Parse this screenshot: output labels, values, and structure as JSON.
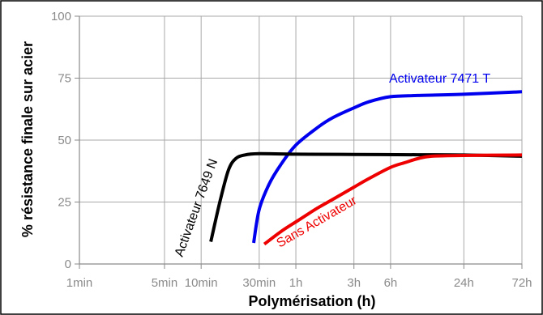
{
  "chart_data": {
    "type": "line",
    "xlabel": "Polymérisation (h)",
    "ylabel": "% résistance finale sur acier",
    "x_scale": "log",
    "x_ticks": [
      {
        "label": "1min",
        "hours": 0.016667
      },
      {
        "label": "5min",
        "hours": 0.083333
      },
      {
        "label": "10min",
        "hours": 0.166667
      },
      {
        "label": "30min",
        "hours": 0.5
      },
      {
        "label": "1h",
        "hours": 1
      },
      {
        "label": "3h",
        "hours": 3
      },
      {
        "label": "6h",
        "hours": 6
      },
      {
        "label": "24h",
        "hours": 24
      },
      {
        "label": "72h",
        "hours": 72
      }
    ],
    "y_ticks": [
      0,
      25,
      50,
      75,
      100
    ],
    "ylim": [
      0,
      100
    ],
    "grid": true,
    "series": [
      {
        "name": "Activateur 7471 T",
        "color": "#0000ee",
        "x": [
          0.45,
          0.5,
          0.6,
          0.75,
          1,
          1.5,
          2,
          3,
          4,
          6,
          10,
          24,
          72
        ],
        "y": [
          8.5,
          22,
          32,
          40,
          48,
          55,
          59,
          63,
          65.5,
          67.5,
          68,
          68.5,
          69.5
        ]
      },
      {
        "name": "Activateur 7649 N",
        "color": "#000000",
        "x": [
          0.2,
          0.24,
          0.28,
          0.32,
          0.38,
          0.5,
          1,
          3,
          10,
          24,
          72
        ],
        "y": [
          9,
          26,
          38,
          42.5,
          44,
          44.5,
          44.3,
          44.2,
          44.1,
          44,
          43.5
        ]
      },
      {
        "name": "Sans Activateur",
        "color": "#ee0000",
        "x": [
          0.55,
          0.75,
          1,
          1.5,
          2,
          3,
          4,
          6,
          8,
          10,
          13,
          24,
          72
        ],
        "y": [
          8,
          13,
          17,
          22.5,
          26,
          31,
          34.5,
          39,
          41,
          42.5,
          43.5,
          43.8,
          44
        ]
      }
    ]
  }
}
